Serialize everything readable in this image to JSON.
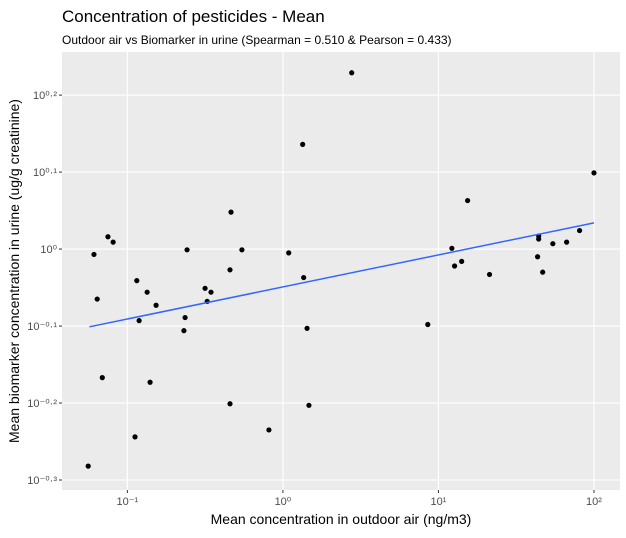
{
  "chart_data": {
    "type": "scatter",
    "title": "Concentration of pesticides - Mean",
    "subtitle": "Outdoor air vs Biomarker in urine  (Spearman = 0.510 & Pearson = 0.433)",
    "x_label": "Mean concentration in outdoor air (ng/m3)",
    "y_label": "Mean biomarker concentration in urine (ug/g creatinine)",
    "x_scale": "log",
    "grid": true,
    "xlim": [
      0.038,
      147
    ],
    "xticks": [
      {
        "value": 0.1,
        "label": "10⁻¹"
      },
      {
        "value": 1,
        "label": "10⁰"
      },
      {
        "value": 10,
        "label": "10¹"
      },
      {
        "value": 100,
        "label": "10²"
      }
    ],
    "ylim": [
      -0.313,
      0.256
    ],
    "yticks": [
      {
        "value": -0.3,
        "label": "10⁻⁰·³"
      },
      {
        "value": -0.2,
        "label": "10⁻⁰·²"
      },
      {
        "value": -0.1,
        "label": "10⁻⁰·¹"
      },
      {
        "value": 0,
        "label": "10⁰"
      },
      {
        "value": 0.1,
        "label": "10⁰·¹"
      },
      {
        "value": 0.2,
        "label": "10⁰·²"
      }
    ],
    "series": [
      {
        "color": "#000000",
        "x": [
          0.056,
          0.061,
          0.064,
          0.069,
          0.075,
          0.081,
          0.112,
          0.115,
          0.119,
          0.134,
          0.14,
          0.153,
          0.231,
          0.235,
          0.242,
          0.316,
          0.326,
          0.345,
          0.457,
          0.457,
          0.464,
          0.545,
          0.813,
          1.09,
          1.34,
          1.36,
          1.43,
          1.47,
          2.77,
          8.54,
          12.2,
          12.7,
          14.1,
          15.4,
          21.3,
          43.4,
          44.1,
          44.1,
          46.8,
          54.4,
          66.7,
          80.8,
          100
        ],
        "values": [
          -0.282,
          -0.007,
          -0.065,
          -0.167,
          0.016,
          0.009,
          -0.244,
          -0.041,
          -0.093,
          -0.056,
          -0.173,
          -0.073,
          -0.106,
          -0.089,
          -0.001,
          -0.051,
          -0.068,
          -0.056,
          -0.201,
          -0.027,
          0.048,
          -0.001,
          -0.235,
          -0.005,
          0.136,
          -0.037,
          -0.103,
          -0.203,
          0.229,
          -0.098,
          0.001,
          -0.022,
          -0.016,
          0.063,
          -0.033,
          -0.01,
          0.013,
          0.017,
          -0.03,
          0.007,
          0.009,
          0.024,
          0.099
        ]
      }
    ],
    "trend": {
      "color": "#3366ff",
      "x": [
        0.057,
        100
      ],
      "values": [
        -0.101,
        0.034
      ]
    }
  }
}
